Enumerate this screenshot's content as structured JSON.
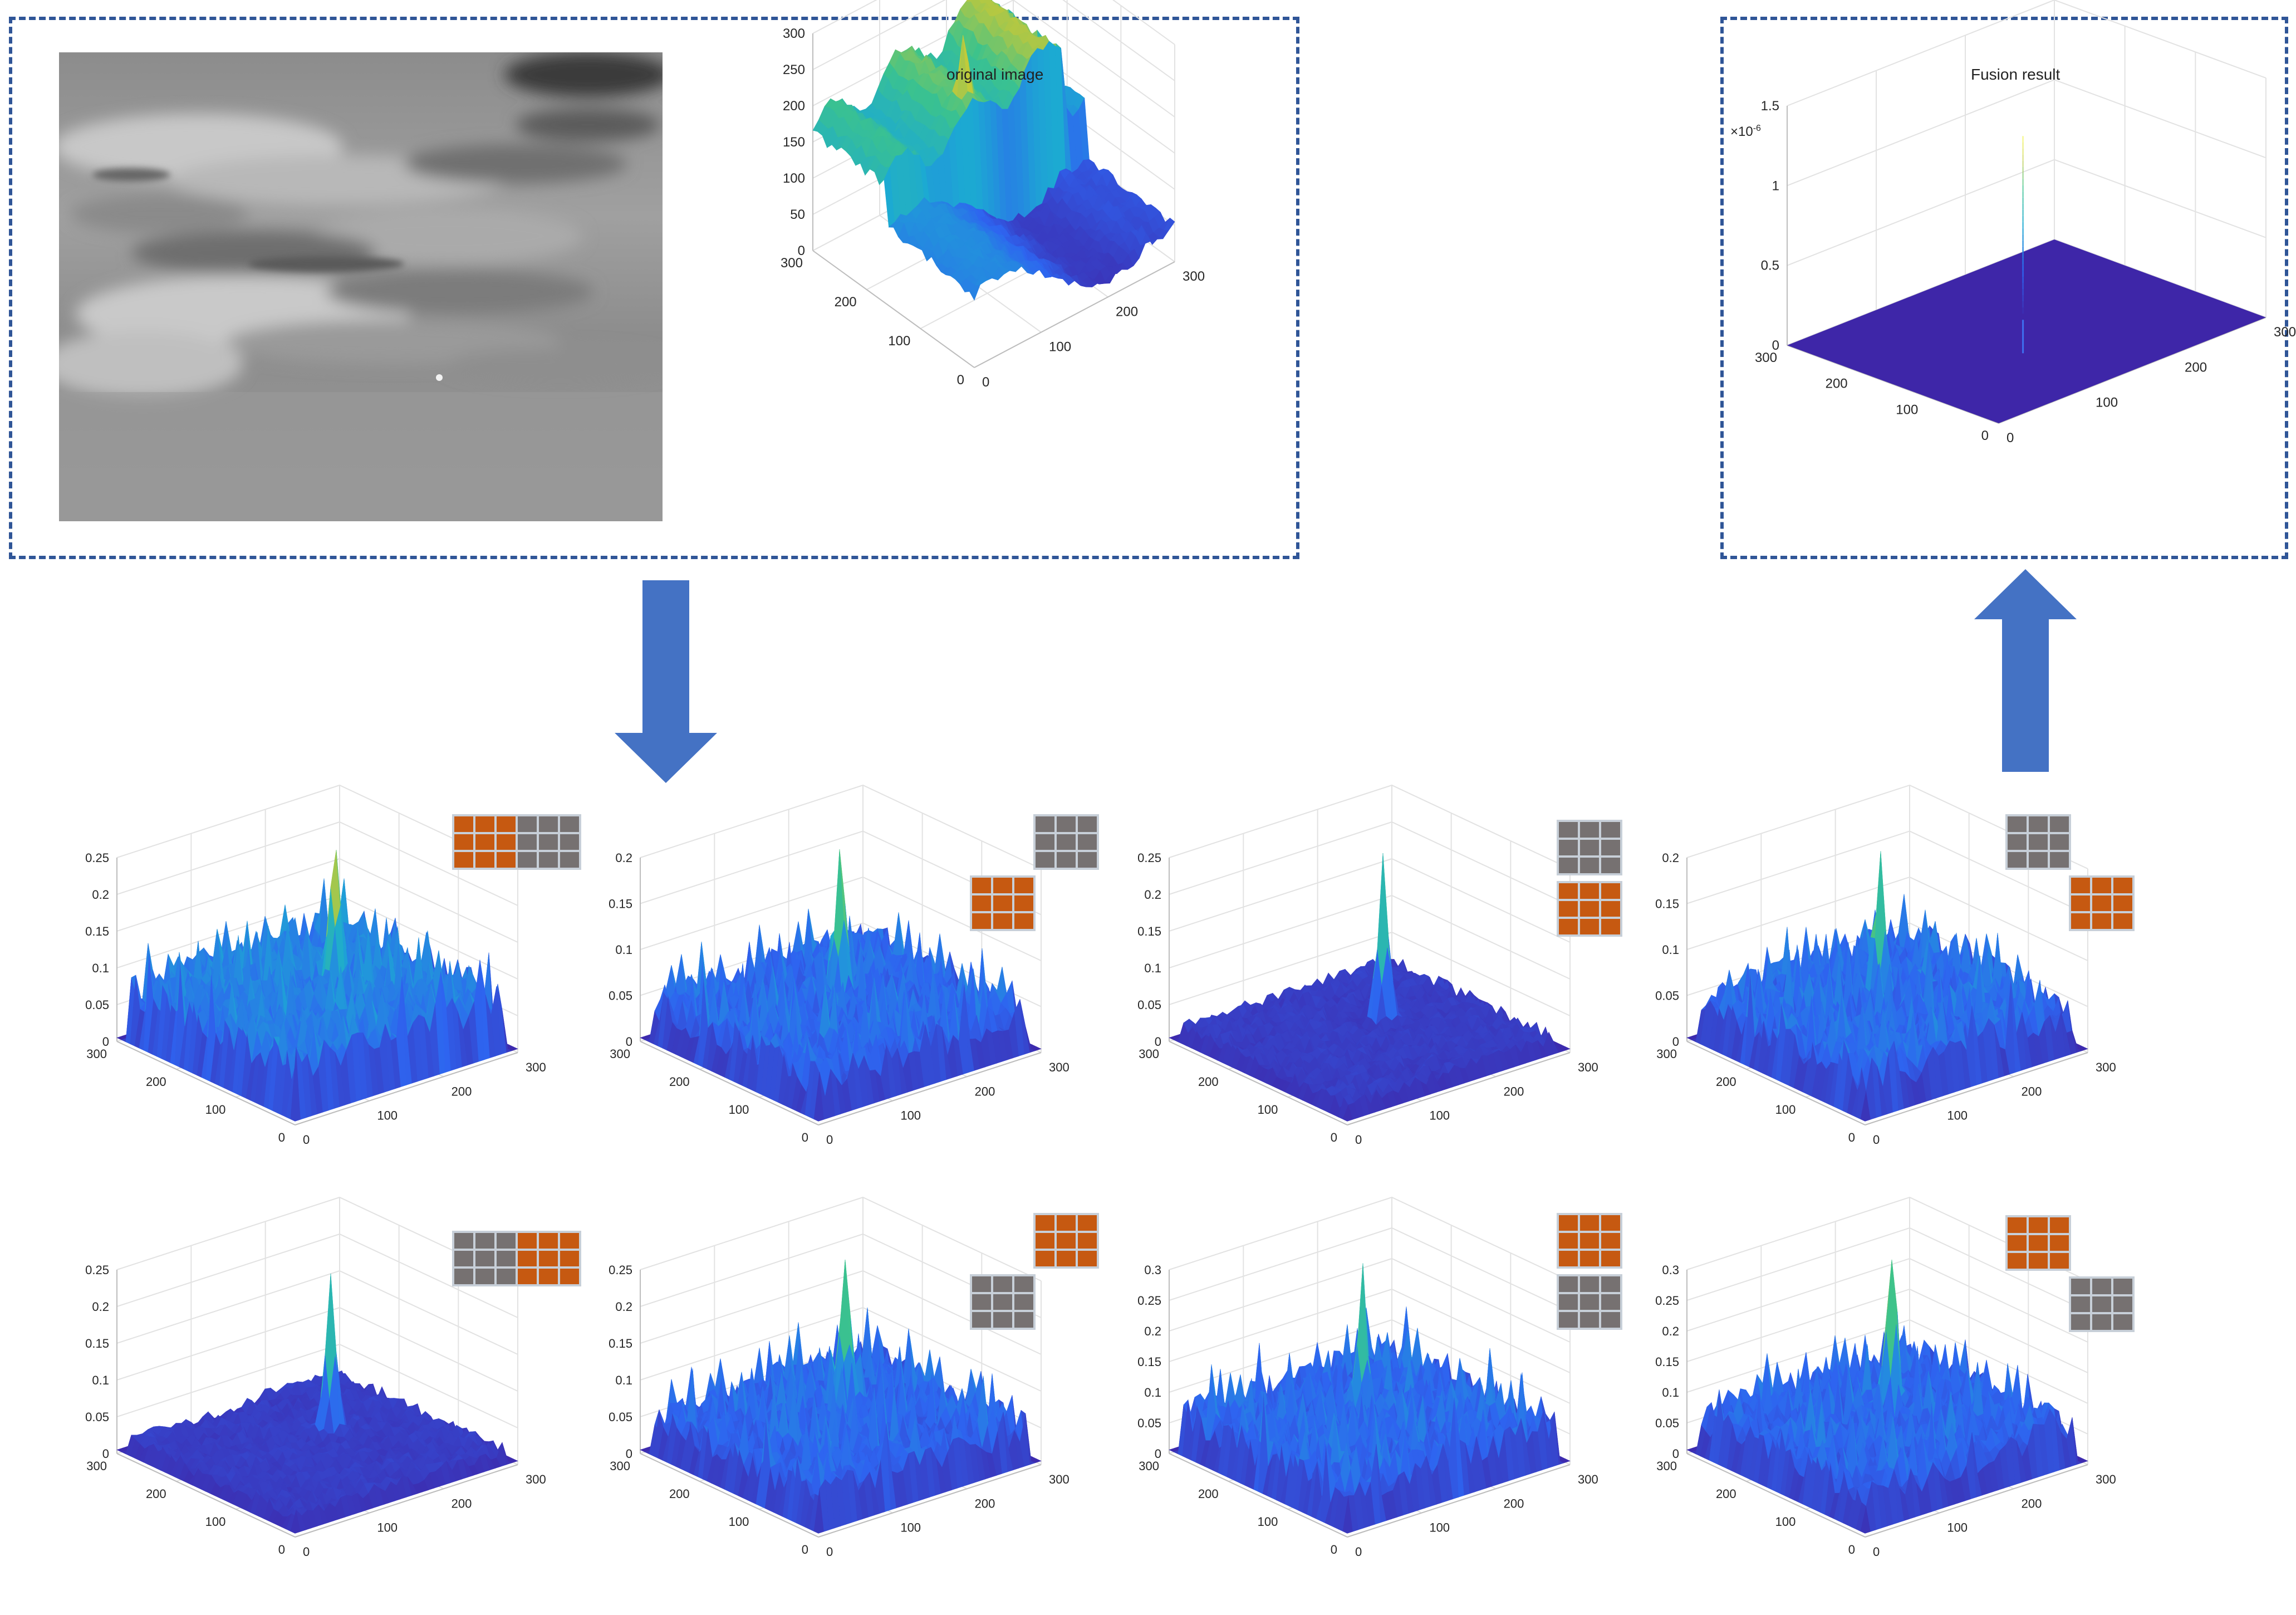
{
  "top_left_panel": {
    "original_title": "original image",
    "z_ticks": [
      "0",
      "50",
      "100",
      "150",
      "200",
      "250",
      "300"
    ],
    "y_ticks": [
      "0",
      "100",
      "200",
      "300"
    ],
    "x_ticks": [
      "0",
      "100",
      "200",
      "300"
    ]
  },
  "top_right_panel": {
    "fusion_title": "Fusion result",
    "exponent": "×10",
    "exponent_power": "-6",
    "z_ticks": [
      "0",
      "0.5",
      "1",
      "1.5"
    ],
    "y_ticks": [
      "0",
      "100",
      "200",
      "300"
    ],
    "x_ticks": [
      "0",
      "100",
      "200",
      "300"
    ]
  },
  "subplots": [
    {
      "z_ticks": [
        "0",
        "0.05",
        "0.1",
        "0.15",
        "0.2",
        "0.25"
      ],
      "mask": "row-left"
    },
    {
      "z_ticks": [
        "0",
        "0.05",
        "0.1",
        "0.15",
        "0.2"
      ],
      "mask": "diag-lower-left"
    },
    {
      "z_ticks": [
        "0",
        "0.05",
        "0.1",
        "0.15",
        "0.2",
        "0.25"
      ],
      "mask": "col-bottom"
    },
    {
      "z_ticks": [
        "0",
        "0.05",
        "0.1",
        "0.15",
        "0.2"
      ],
      "mask": "diag-lower-right"
    },
    {
      "z_ticks": [
        "0",
        "0.05",
        "0.1",
        "0.15",
        "0.2",
        "0.25"
      ],
      "mask": "row-right"
    },
    {
      "z_ticks": [
        "0",
        "0.05",
        "0.1",
        "0.15",
        "0.2",
        "0.25"
      ],
      "mask": "diag-upper-right"
    },
    {
      "z_ticks": [
        "0",
        "0.05",
        "0.1",
        "0.15",
        "0.2",
        "0.25",
        "0.3"
      ],
      "mask": "col-top"
    },
    {
      "z_ticks": [
        "0",
        "0.05",
        "0.1",
        "0.15",
        "0.2",
        "0.25",
        "0.3"
      ],
      "mask": "diag-upper-left"
    }
  ],
  "common_ticks": {
    "y": [
      "0",
      "100",
      "200",
      "300"
    ],
    "x": [
      "0",
      "100",
      "200",
      "300"
    ]
  },
  "colors": {
    "dashed_border": "#2f5597",
    "arrow": "#4472c4",
    "mask_orange": "#c65911",
    "mask_gray": "#767171",
    "surface_low": "#3e26a8",
    "surface_mid": "#2ab0c5",
    "surface_high": "#f9fb0e"
  }
}
